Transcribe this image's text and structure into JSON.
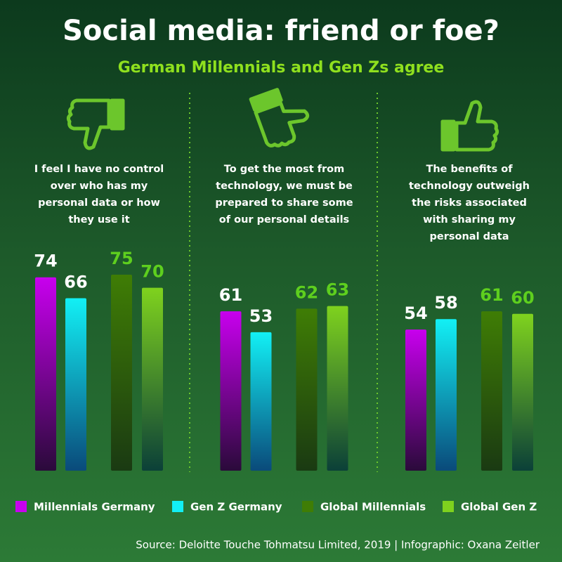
{
  "chart_data": {
    "type": "bar",
    "title": "Social media: friend or foe?",
    "subtitle": "German Millennials and Gen Zs agree",
    "categories": [
      "I feel I have no control over who has my personal data or how they use it",
      "To get the most from technology, we must be prepared to share some of our personal details",
      "The benefits of technology outweigh the risks associated with sharing my personal data"
    ],
    "series": [
      {
        "name": "Millennials Germany",
        "color": "#c800ee",
        "values": [
          74,
          61,
          54
        ]
      },
      {
        "name": "Gen Z Germany",
        "color": "#12f0f5",
        "values": [
          66,
          53,
          58
        ]
      },
      {
        "name": "Global Millennials",
        "color": "#3f7d05",
        "values": [
          75,
          62,
          61
        ]
      },
      {
        "name": "Global Gen Z",
        "color": "#7fd21e",
        "values": [
          70,
          63,
          60
        ]
      }
    ],
    "source": "Source: Deloitte Touche Tohmatsu Limited, 2019 | Infographic: Oxana Zeitler"
  }
}
